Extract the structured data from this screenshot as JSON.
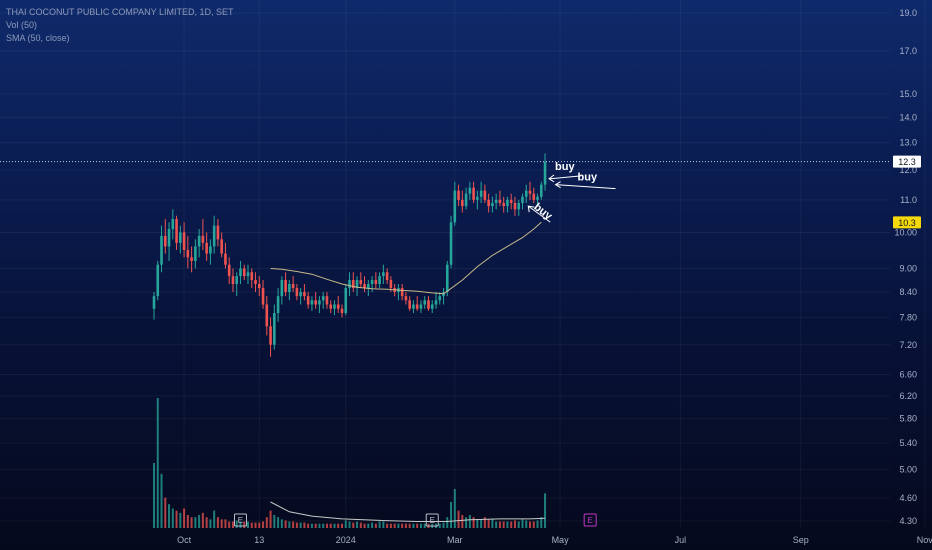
{
  "legend": {
    "title": "THAI COCONUT PUBLIC COMPANY LIMITED, 1D, SET",
    "vol": "Vol (50)",
    "sma": "SMA (50, close)"
  },
  "colors": {
    "up": "#26a69a",
    "down": "#ef5350",
    "sma": "#c9b98a",
    "annotation": "#ffffff",
    "last_badge_bg": "#ffffff",
    "sma_badge_bg": "#f5d90a",
    "earnings_past": "#b8bec9",
    "earnings_future": "#c33ac9"
  },
  "chart_data": {
    "type": "candlestick",
    "symbol": "THAI COCONUT PUBLIC COMPANY LIMITED",
    "interval": "1D",
    "exchange": "SET",
    "y_scale": "log",
    "ylim": [
      4.2,
      19.5
    ],
    "price_ticks": [
      "19.0",
      "17.0",
      "15.0",
      "14.0",
      "13.0",
      "12.0",
      "11.0",
      "10.00",
      "9.00",
      "8.40",
      "7.80",
      "7.20",
      "6.60",
      "6.20",
      "5.80",
      "5.40",
      "5.00",
      "4.60",
      "4.30"
    ],
    "x_ticks": [
      "Oct",
      "13",
      "2024",
      "Mar",
      "May",
      "Jul",
      "Sep",
      "Nov"
    ],
    "last_price": "12.3",
    "sma_value": "10.3",
    "candles_ohlc": [
      [
        8.0,
        8.4,
        7.75,
        8.3
      ],
      [
        8.3,
        9.2,
        8.2,
        9.1
      ],
      [
        9.1,
        10.2,
        8.9,
        9.9
      ],
      [
        9.9,
        10.4,
        9.4,
        9.6
      ],
      [
        9.6,
        10.3,
        9.2,
        10.1
      ],
      [
        10.1,
        10.7,
        9.8,
        10.4
      ],
      [
        10.4,
        10.5,
        9.5,
        9.7
      ],
      [
        9.7,
        10.2,
        9.4,
        10.0
      ],
      [
        10.0,
        10.3,
        9.3,
        9.5
      ],
      [
        9.5,
        9.9,
        9.0,
        9.3
      ],
      [
        9.3,
        9.6,
        8.9,
        9.2
      ],
      [
        9.2,
        9.8,
        9.0,
        9.6
      ],
      [
        9.6,
        10.1,
        9.3,
        9.9
      ],
      [
        9.9,
        10.4,
        9.5,
        9.7
      ],
      [
        9.7,
        10.0,
        9.2,
        9.4
      ],
      [
        9.4,
        9.8,
        9.1,
        9.6
      ],
      [
        9.6,
        10.5,
        9.4,
        10.2
      ],
      [
        10.2,
        10.4,
        9.6,
        9.8
      ],
      [
        9.8,
        10.0,
        9.3,
        9.4
      ],
      [
        9.4,
        9.7,
        9.0,
        9.1
      ],
      [
        9.1,
        9.3,
        8.6,
        8.8
      ],
      [
        8.8,
        9.0,
        8.4,
        8.6
      ],
      [
        8.6,
        8.9,
        8.3,
        8.8
      ],
      [
        8.8,
        9.2,
        8.6,
        9.0
      ],
      [
        9.0,
        9.1,
        8.7,
        8.8
      ],
      [
        8.8,
        9.1,
        8.6,
        8.9
      ],
      [
        8.9,
        9.0,
        8.5,
        8.7
      ],
      [
        8.7,
        8.9,
        8.4,
        8.6
      ],
      [
        8.6,
        8.8,
        8.3,
        8.5
      ],
      [
        8.5,
        8.7,
        8.0,
        8.1
      ],
      [
        8.1,
        8.3,
        7.4,
        7.6
      ],
      [
        7.6,
        7.8,
        6.95,
        7.2
      ],
      [
        7.2,
        8.1,
        7.1,
        7.9
      ],
      [
        7.9,
        8.5,
        7.7,
        8.3
      ],
      [
        8.3,
        8.8,
        8.1,
        8.7
      ],
      [
        8.7,
        8.9,
        8.3,
        8.4
      ],
      [
        8.4,
        8.7,
        8.2,
        8.6
      ],
      [
        8.6,
        8.8,
        8.4,
        8.5
      ],
      [
        8.5,
        8.6,
        8.2,
        8.3
      ],
      [
        8.3,
        8.5,
        8.1,
        8.4
      ],
      [
        8.4,
        8.6,
        8.2,
        8.3
      ],
      [
        8.3,
        8.4,
        8.0,
        8.1
      ],
      [
        8.1,
        8.3,
        7.95,
        8.2
      ],
      [
        8.2,
        8.4,
        8.0,
        8.1
      ],
      [
        8.1,
        8.3,
        7.9,
        8.2
      ],
      [
        8.2,
        8.4,
        8.0,
        8.3
      ],
      [
        8.3,
        8.4,
        8.0,
        8.1
      ],
      [
        8.1,
        8.2,
        7.9,
        8.0
      ],
      [
        8.0,
        8.2,
        7.85,
        8.1
      ],
      [
        8.1,
        8.3,
        7.9,
        8.0
      ],
      [
        8.0,
        8.1,
        7.8,
        7.9
      ],
      [
        7.9,
        8.6,
        7.85,
        8.5
      ],
      [
        8.5,
        8.9,
        8.3,
        8.7
      ],
      [
        8.7,
        8.9,
        8.4,
        8.5
      ],
      [
        8.5,
        8.8,
        8.3,
        8.7
      ],
      [
        8.7,
        8.9,
        8.5,
        8.6
      ],
      [
        8.6,
        8.8,
        8.4,
        8.5
      ],
      [
        8.5,
        8.7,
        8.3,
        8.6
      ],
      [
        8.6,
        8.8,
        8.4,
        8.7
      ],
      [
        8.7,
        8.9,
        8.5,
        8.6
      ],
      [
        8.6,
        8.9,
        8.5,
        8.8
      ],
      [
        8.8,
        9.1,
        8.6,
        8.9
      ],
      [
        8.9,
        9.0,
        8.6,
        8.7
      ],
      [
        8.7,
        8.8,
        8.4,
        8.5
      ],
      [
        8.5,
        8.6,
        8.3,
        8.4
      ],
      [
        8.4,
        8.6,
        8.2,
        8.5
      ],
      [
        8.5,
        8.6,
        8.2,
        8.3
      ],
      [
        8.3,
        8.4,
        8.1,
        8.2
      ],
      [
        8.2,
        8.3,
        7.95,
        8.0
      ],
      [
        8.0,
        8.2,
        7.9,
        8.1
      ],
      [
        8.1,
        8.3,
        7.95,
        8.0
      ],
      [
        8.0,
        8.2,
        7.9,
        8.1
      ],
      [
        8.1,
        8.3,
        8.0,
        8.2
      ],
      [
        8.2,
        8.3,
        7.95,
        8.0
      ],
      [
        8.0,
        8.2,
        7.9,
        8.1
      ],
      [
        8.1,
        8.4,
        8.0,
        8.2
      ],
      [
        8.2,
        8.4,
        8.1,
        8.3
      ],
      [
        8.3,
        8.5,
        8.1,
        8.4
      ],
      [
        8.4,
        9.2,
        8.3,
        9.1
      ],
      [
        9.1,
        10.5,
        9.0,
        10.3
      ],
      [
        10.3,
        11.6,
        10.2,
        11.3
      ],
      [
        11.3,
        11.5,
        10.8,
        11.0
      ],
      [
        11.0,
        11.3,
        10.6,
        10.8
      ],
      [
        10.8,
        11.4,
        10.7,
        11.2
      ],
      [
        11.2,
        11.6,
        11.0,
        11.4
      ],
      [
        11.4,
        11.6,
        10.9,
        11.0
      ],
      [
        11.0,
        11.3,
        10.7,
        11.1
      ],
      [
        11.1,
        11.6,
        10.9,
        11.3
      ],
      [
        11.3,
        11.5,
        10.9,
        11.0
      ],
      [
        11.0,
        11.2,
        10.6,
        10.8
      ],
      [
        10.8,
        11.1,
        10.6,
        10.9
      ],
      [
        10.9,
        11.2,
        10.7,
        11.0
      ],
      [
        11.0,
        11.3,
        10.8,
        10.9
      ],
      [
        10.9,
        11.1,
        10.6,
        10.8
      ],
      [
        10.8,
        11.1,
        10.6,
        11.0
      ],
      [
        11.0,
        11.2,
        10.7,
        10.9
      ],
      [
        10.9,
        11.1,
        10.5,
        10.7
      ],
      [
        10.7,
        11.0,
        10.5,
        10.9
      ],
      [
        10.9,
        11.2,
        10.7,
        11.1
      ],
      [
        11.1,
        11.5,
        10.9,
        11.3
      ],
      [
        11.3,
        11.6,
        11.0,
        11.2
      ],
      [
        11.2,
        11.4,
        10.9,
        11.0
      ],
      [
        11.0,
        11.2,
        10.8,
        11.1
      ],
      [
        11.1,
        11.6,
        11.0,
        11.5
      ],
      [
        11.5,
        12.6,
        11.3,
        12.3
      ]
    ],
    "sma_series": [
      [
        31,
        9.0
      ],
      [
        34,
        8.98
      ],
      [
        38,
        8.92
      ],
      [
        42,
        8.85
      ],
      [
        46,
        8.72
      ],
      [
        50,
        8.6
      ],
      [
        54,
        8.52
      ],
      [
        58,
        8.48
      ],
      [
        62,
        8.47
      ],
      [
        66,
        8.44
      ],
      [
        70,
        8.42
      ],
      [
        74,
        8.38
      ],
      [
        77,
        8.36
      ],
      [
        78,
        8.42
      ],
      [
        82,
        8.7
      ],
      [
        86,
        9.05
      ],
      [
        90,
        9.35
      ],
      [
        94,
        9.6
      ],
      [
        98,
        9.85
      ],
      [
        101,
        10.1
      ],
      [
        103,
        10.3
      ]
    ],
    "volume_max_m": 6.0,
    "volumes_m": [
      3.0,
      6.0,
      2.5,
      1.4,
      1.1,
      0.9,
      0.8,
      0.7,
      0.9,
      0.6,
      0.5,
      0.5,
      0.6,
      0.7,
      0.5,
      0.4,
      0.8,
      0.5,
      0.4,
      0.4,
      0.3,
      0.3,
      0.35,
      0.3,
      0.3,
      0.3,
      0.25,
      0.25,
      0.25,
      0.3,
      0.5,
      0.8,
      0.6,
      0.5,
      0.4,
      0.35,
      0.3,
      0.3,
      0.25,
      0.25,
      0.25,
      0.2,
      0.2,
      0.2,
      0.2,
      0.2,
      0.2,
      0.2,
      0.2,
      0.2,
      0.2,
      0.35,
      0.3,
      0.25,
      0.3,
      0.25,
      0.2,
      0.2,
      0.25,
      0.2,
      0.3,
      0.3,
      0.2,
      0.2,
      0.2,
      0.2,
      0.2,
      0.2,
      0.2,
      0.2,
      0.2,
      0.2,
      0.2,
      0.2,
      0.2,
      0.2,
      0.2,
      0.25,
      0.5,
      1.2,
      1.8,
      0.8,
      0.6,
      0.5,
      0.6,
      0.5,
      0.4,
      0.4,
      0.5,
      0.4,
      0.4,
      0.3,
      0.3,
      0.3,
      0.3,
      0.3,
      0.35,
      0.3,
      0.4,
      0.35,
      0.3,
      0.3,
      0.35,
      0.5,
      1.6
    ],
    "volume_sma_line": [
      [
        31,
        1.2
      ],
      [
        36,
        0.75
      ],
      [
        42,
        0.55
      ],
      [
        50,
        0.42
      ],
      [
        60,
        0.35
      ],
      [
        70,
        0.3
      ],
      [
        78,
        0.3
      ],
      [
        84,
        0.38
      ],
      [
        92,
        0.42
      ],
      [
        100,
        0.42
      ],
      [
        104,
        0.45
      ]
    ],
    "earnings_markers": [
      {
        "index": 23,
        "label": "E",
        "state": "past"
      },
      {
        "index": 74,
        "label": "E",
        "state": "past"
      },
      {
        "index": 116,
        "label": "E",
        "state": "future"
      }
    ],
    "annotations": [
      {
        "text": "buy",
        "price": 11.8,
        "index": 104
      },
      {
        "text": "buy",
        "price": 11.5,
        "index": 106
      },
      {
        "text": "buy",
        "price": 10.8,
        "index": 99
      }
    ]
  }
}
